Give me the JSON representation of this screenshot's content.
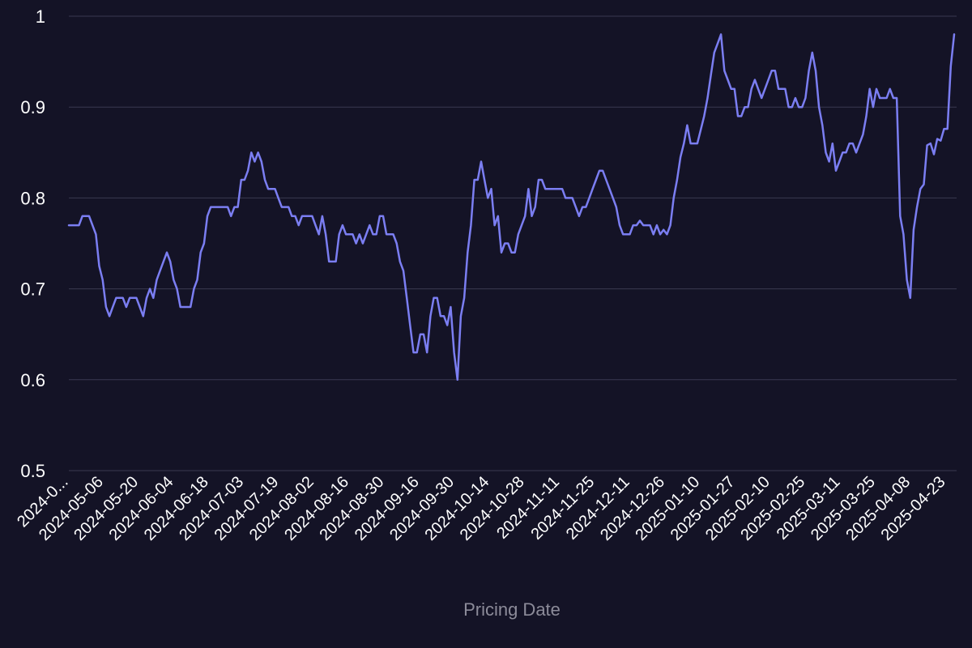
{
  "chart_data": {
    "type": "line",
    "title": "",
    "xlabel": "Pricing Date",
    "ylabel": "",
    "ylim": [
      0.5,
      1
    ],
    "yticks": [
      "0.5",
      "0.6",
      "0.7",
      "0.8",
      "0.9",
      "1"
    ],
    "xticks": [
      "2024-0...",
      "2024-05-06",
      "2024-05-20",
      "2024-06-04",
      "2024-06-18",
      "2024-07-03",
      "2024-07-19",
      "2024-08-02",
      "2024-08-16",
      "2024-08-30",
      "2024-09-16",
      "2024-09-30",
      "2024-10-14",
      "2024-10-28",
      "2024-11-11",
      "2024-11-25",
      "2024-12-11",
      "2024-12-26",
      "2025-01-10",
      "2025-01-27",
      "2025-02-10",
      "2025-02-25",
      "2025-03-11",
      "2025-03-25",
      "2025-04-08",
      "2025-04-23"
    ],
    "grid": true,
    "legend": "none",
    "line_color": "#7b7ef2",
    "series": [
      {
        "values": [
          0.77,
          0.77,
          0.77,
          0.77,
          0.78,
          0.78,
          0.78,
          0.77,
          0.76,
          0.725,
          0.71,
          0.68,
          0.67,
          0.68,
          0.69,
          0.69,
          0.69,
          0.68,
          0.69,
          0.69,
          0.69,
          0.68,
          0.67,
          0.69,
          0.7,
          0.69,
          0.71,
          0.72,
          0.73,
          0.74,
          0.73,
          0.71,
          0.7,
          0.68,
          0.68,
          0.68,
          0.68,
          0.7,
          0.71,
          0.74,
          0.75,
          0.78,
          0.79,
          0.79,
          0.79,
          0.79,
          0.79,
          0.79,
          0.78,
          0.79,
          0.79,
          0.82,
          0.82,
          0.83,
          0.85,
          0.84,
          0.85,
          0.84,
          0.82,
          0.81,
          0.81,
          0.81,
          0.8,
          0.79,
          0.79,
          0.79,
          0.78,
          0.78,
          0.77,
          0.78,
          0.78,
          0.78,
          0.78,
          0.77,
          0.76,
          0.78,
          0.76,
          0.73,
          0.73,
          0.73,
          0.76,
          0.77,
          0.76,
          0.76,
          0.76,
          0.75,
          0.76,
          0.75,
          0.76,
          0.77,
          0.76,
          0.76,
          0.78,
          0.78,
          0.76,
          0.76,
          0.76,
          0.75,
          0.73,
          0.72,
          0.69,
          0.66,
          0.63,
          0.63,
          0.65,
          0.65,
          0.63,
          0.67,
          0.69,
          0.69,
          0.67,
          0.67,
          0.66,
          0.68,
          0.63,
          0.6,
          0.67,
          0.69,
          0.74,
          0.77,
          0.82,
          0.82,
          0.84,
          0.82,
          0.8,
          0.81,
          0.77,
          0.78,
          0.74,
          0.75,
          0.75,
          0.74,
          0.74,
          0.76,
          0.77,
          0.78,
          0.81,
          0.78,
          0.79,
          0.82,
          0.82,
          0.81,
          0.81,
          0.81,
          0.81,
          0.81,
          0.81,
          0.8,
          0.8,
          0.8,
          0.79,
          0.78,
          0.79,
          0.79,
          0.8,
          0.81,
          0.82,
          0.83,
          0.83,
          0.82,
          0.81,
          0.8,
          0.79,
          0.77,
          0.76,
          0.76,
          0.76,
          0.77,
          0.77,
          0.775,
          0.77,
          0.77,
          0.77,
          0.76,
          0.77,
          0.76,
          0.765,
          0.76,
          0.77,
          0.8,
          0.82,
          0.845,
          0.86,
          0.88,
          0.86,
          0.86,
          0.86,
          0.875,
          0.89,
          0.91,
          0.935,
          0.96,
          0.97,
          0.98,
          0.94,
          0.93,
          0.92,
          0.92,
          0.89,
          0.89,
          0.9,
          0.9,
          0.92,
          0.93,
          0.92,
          0.91,
          0.92,
          0.93,
          0.94,
          0.94,
          0.92,
          0.92,
          0.92,
          0.9,
          0.9,
          0.91,
          0.9,
          0.9,
          0.91,
          0.94,
          0.96,
          0.94,
          0.9,
          0.88,
          0.85,
          0.84,
          0.86,
          0.83,
          0.84,
          0.85,
          0.85,
          0.86,
          0.86,
          0.85,
          0.86,
          0.87,
          0.89,
          0.92,
          0.9,
          0.92,
          0.91,
          0.91,
          0.91,
          0.92,
          0.91,
          0.91,
          0.78,
          0.76,
          0.71,
          0.69,
          0.765,
          0.79,
          0.81,
          0.815,
          0.858,
          0.86,
          0.848,
          0.865,
          0.863,
          0.876,
          0.876,
          0.945,
          0.98
        ]
      }
    ]
  }
}
